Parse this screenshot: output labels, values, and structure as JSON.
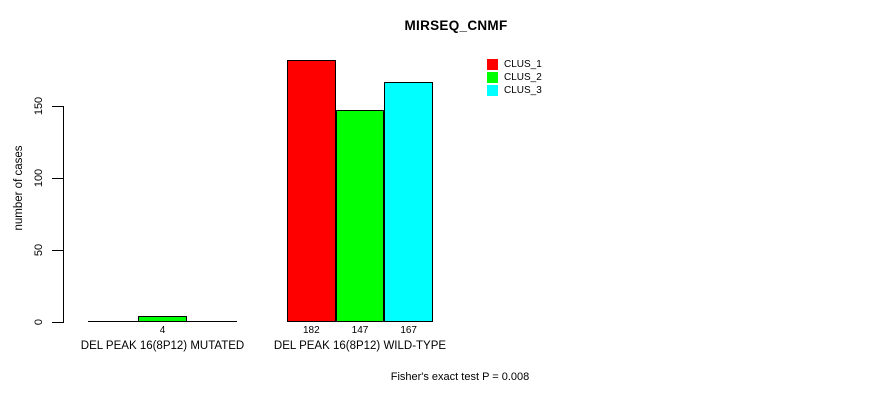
{
  "title": "MIRSEQ_CNMF",
  "ylabel": "number of cases",
  "footer": "Fisher's exact test P = 0.008",
  "legend": {
    "items": [
      {
        "label": "CLUS_1",
        "color": "#ff0000"
      },
      {
        "label": "CLUS_2",
        "color": "#00ff00"
      },
      {
        "label": "CLUS_3",
        "color": "#00ffff"
      }
    ]
  },
  "chart_data": {
    "type": "bar",
    "grouped": true,
    "title": "MIRSEQ_CNMF",
    "ylabel": "number of cases",
    "annotation": "Fisher's exact test P = 0.008",
    "categories": [
      "DEL PEAK 16(8P12) MUTATED",
      "DEL PEAK 16(8P12) WILD-TYPE"
    ],
    "series": [
      {
        "name": "CLUS_1",
        "color": "#ff0000",
        "values": [
          0,
          182
        ]
      },
      {
        "name": "CLUS_2",
        "color": "#00ff00",
        "values": [
          4,
          147
        ]
      },
      {
        "name": "CLUS_3",
        "color": "#00ffff",
        "values": [
          0,
          167
        ]
      }
    ],
    "bar_value_labels": [
      [
        "",
        "4",
        ""
      ],
      [
        "182",
        "147",
        "167"
      ]
    ],
    "yticks": [
      0,
      50,
      100,
      150
    ],
    "ylim": [
      0,
      190
    ],
    "grid": false,
    "legend_position": "top-right",
    "bar_border_color": "#000000"
  }
}
